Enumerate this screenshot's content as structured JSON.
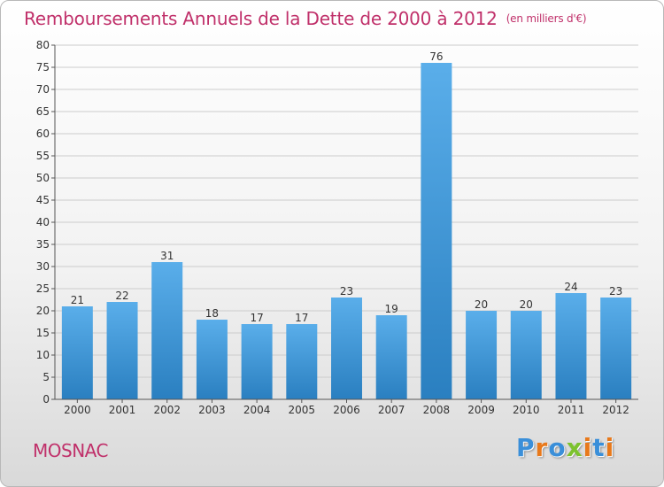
{
  "header": {
    "title": "Remboursements Annuels de la Dette de 2000 à 2012",
    "unit": "(en milliers d'€)"
  },
  "footer": {
    "commune": "MOSNAC",
    "logo_letters": [
      "P",
      "r",
      "o",
      "x",
      "i",
      "t",
      "i"
    ],
    "logo_colors": [
      "#3a8fd9",
      "#e8791b",
      "#3a8fd9",
      "#7cc22e",
      "#e8791b",
      "#3a8fd9",
      "#e8791b"
    ]
  },
  "colors": {
    "title": "#c0306a",
    "bar_top": "#5aaeea",
    "bar_bottom": "#2a7fc0",
    "grid": "#cccccc",
    "axis": "#555555"
  },
  "chart_data": {
    "type": "bar",
    "categories": [
      "2000",
      "2001",
      "2002",
      "2003",
      "2004",
      "2005",
      "2006",
      "2007",
      "2008",
      "2009",
      "2010",
      "2011",
      "2012"
    ],
    "values": [
      21,
      22,
      31,
      18,
      17,
      17,
      23,
      19,
      76,
      20,
      20,
      24,
      23
    ],
    "ylim": [
      0,
      80
    ],
    "yticks": [
      0,
      5,
      10,
      15,
      20,
      25,
      30,
      35,
      40,
      45,
      50,
      55,
      60,
      65,
      70,
      75,
      80
    ],
    "grid": true,
    "data_labels": true
  }
}
